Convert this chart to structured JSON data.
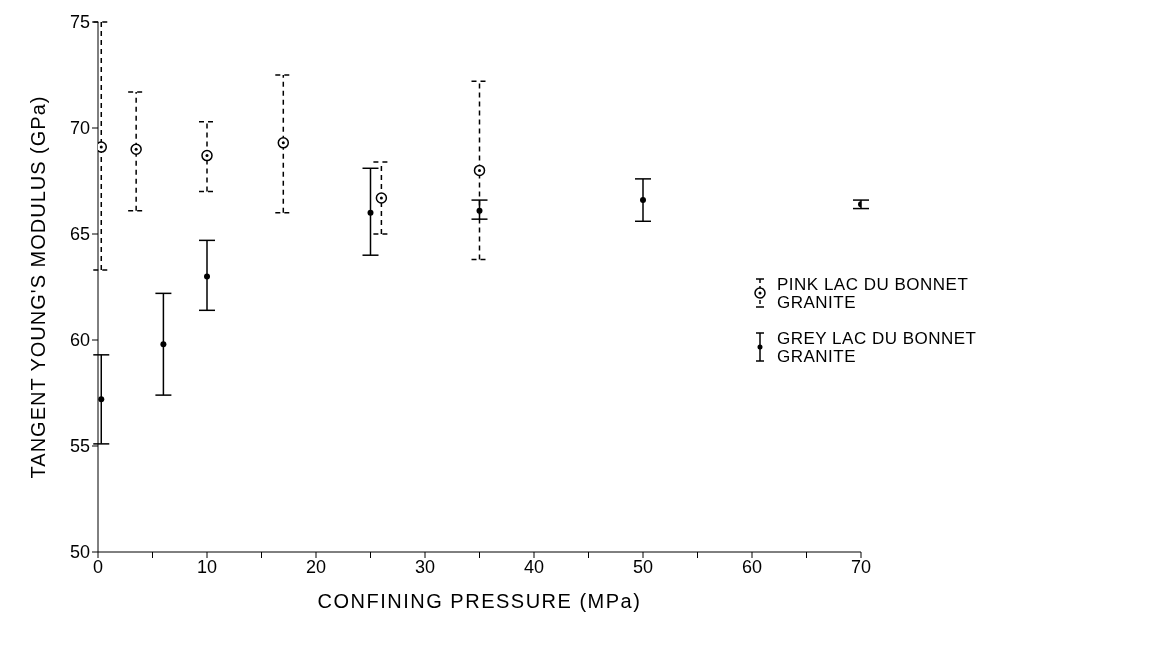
{
  "chart_data": {
    "type": "scatter",
    "xlabel": "CONFINING PRESSURE (MPa)",
    "ylabel": "TANGENT YOUNG'S MODULUS (GPa)",
    "xlim": [
      0,
      70
    ],
    "ylim": [
      50,
      75
    ],
    "xticks": [
      0,
      {
        "value": 5,
        "label": null
      },
      10,
      {
        "value": 15,
        "label": null
      },
      20,
      {
        "value": 25,
        "label": null
      },
      30,
      {
        "value": 35,
        "label": null
      },
      40,
      {
        "value": 45,
        "label": null
      },
      50,
      {
        "value": 55,
        "label": null
      },
      60,
      {
        "value": 65,
        "label": null
      },
      70
    ],
    "yticks": [
      50,
      55,
      60,
      65,
      70,
      75
    ],
    "legend": "right",
    "marker": "circle",
    "series": [
      {
        "name": "PINK LAC DU BONNET GRANITE",
        "color": "#000000",
        "x": [
          0.3,
          3.5,
          10,
          17,
          26,
          35
        ],
        "values": [
          69.1,
          69.0,
          68.7,
          69.3,
          66.7,
          68.0
        ],
        "errors": [
          [
            63.3,
            75
          ],
          [
            66.1,
            71.7
          ],
          [
            67.0,
            70.3
          ],
          [
            66.0,
            72.5
          ],
          [
            65.0,
            68.4
          ],
          [
            63.8,
            72.2
          ]
        ]
      },
      {
        "name": "GREY LAC DU BONNET GRANITE",
        "color": "#000000",
        "x": [
          0.3,
          6,
          10,
          25,
          35,
          50,
          70
        ],
        "values": [
          57.2,
          59.8,
          63.0,
          66.0,
          66.1,
          66.6,
          66.4
        ],
        "errors": [
          [
            55.1,
            59.3
          ],
          [
            57.4,
            62.2
          ],
          [
            61.4,
            64.7
          ],
          [
            64.0,
            68.1
          ],
          [
            65.7,
            66.6
          ],
          [
            65.6,
            67.6
          ],
          [
            66.2,
            66.6
          ]
        ]
      }
    ]
  }
}
